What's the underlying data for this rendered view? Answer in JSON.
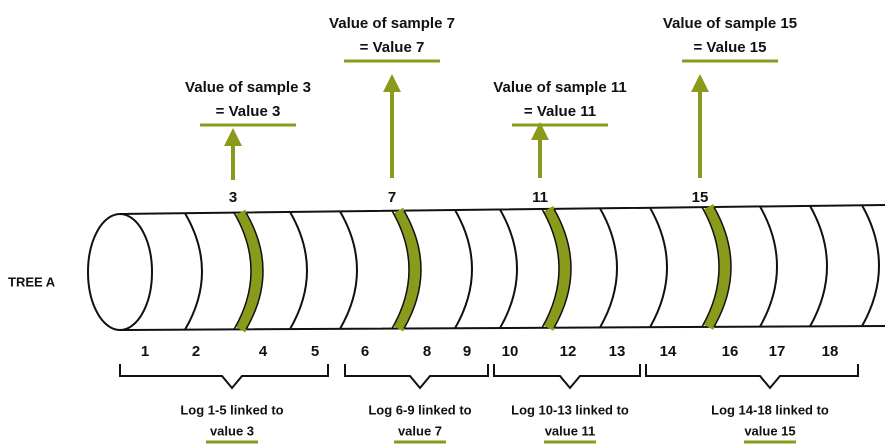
{
  "tree_label": "TREE A",
  "samples": [
    {
      "number": 3,
      "title": "Value of sample 3",
      "value": "= Value 3"
    },
    {
      "number": 7,
      "title": "Value of sample 7",
      "value": "= Value 7"
    },
    {
      "number": 11,
      "title": "Value of sample 11",
      "value": "= Value 11"
    },
    {
      "number": 15,
      "title": "Value of sample 15",
      "value": "= Value 15"
    }
  ],
  "segment_numbers": [
    1,
    2,
    4,
    5,
    6,
    8,
    9,
    10,
    12,
    13,
    14,
    16,
    17,
    18
  ],
  "groups": [
    {
      "line1": "Log 1-5 linked to",
      "line2": "value 3"
    },
    {
      "line1": "Log 6-9 linked to",
      "line2": "value 7"
    },
    {
      "line1": "Log 10-13 linked to",
      "line2": "value 11"
    },
    {
      "line1": "Log 14-18 linked to",
      "line2": "value 15"
    }
  ]
}
